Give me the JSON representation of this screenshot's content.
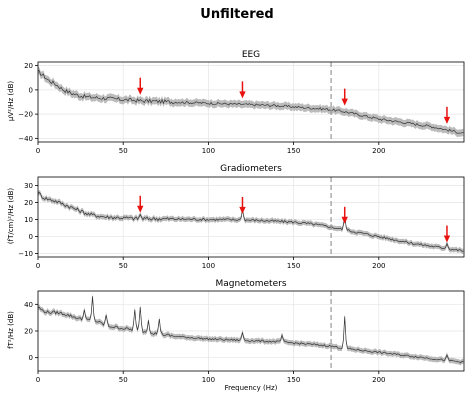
{
  "figure_title": "Unfiltered",
  "xlabel": "Frequency (Hz)",
  "colors": {
    "trace": "#333333",
    "band": "#b0b0b0",
    "arrow": "#e8130f",
    "line_noise_marker": "#999999",
    "grid": "#e5e5e5"
  },
  "chart_data": [
    {
      "type": "line",
      "title": "EEG",
      "ylabel": "µV²/Hz (dB)",
      "xlim": [
        0,
        250
      ],
      "ylim": [
        -43,
        23
      ],
      "xticks": [
        0,
        50,
        100,
        150,
        200
      ],
      "yticks": [
        -40,
        -20,
        0,
        20
      ],
      "grid": true,
      "dashed_vline_x": 172,
      "arrows_x": [
        60,
        120,
        180,
        240
      ],
      "series": [
        {
          "x": [
            0,
            3,
            6,
            10,
            15,
            20,
            25,
            30,
            40,
            50,
            60,
            70,
            80,
            90,
            100,
            110,
            120,
            130,
            140,
            150,
            160,
            170,
            180,
            190,
            200,
            210,
            220,
            230,
            240,
            250
          ],
          "y": [
            15,
            12,
            8,
            5,
            0,
            -3,
            -5,
            -6,
            -7,
            -8,
            -9,
            -9.5,
            -10,
            -10.5,
            -11,
            -11.5,
            -12,
            -12.5,
            -13,
            -14,
            -15,
            -16,
            -18,
            -21,
            -24,
            -26,
            -28,
            -30,
            -33,
            -36
          ],
          "band": 3
        }
      ]
    },
    {
      "type": "line",
      "title": "Gradiometers",
      "ylabel": "(fT/cm)²/Hz (dB)",
      "xlim": [
        0,
        250
      ],
      "ylim": [
        -12,
        35
      ],
      "xticks": [
        0,
        50,
        100,
        150,
        200
      ],
      "yticks": [
        -10,
        0,
        10,
        20,
        30
      ],
      "grid": true,
      "dashed_vline_x": 172,
      "arrows_x": [
        60,
        120,
        180,
        240
      ],
      "series": [
        {
          "x": [
            0,
            3,
            6,
            10,
            15,
            20,
            25,
            30,
            40,
            50,
            60,
            70,
            80,
            90,
            100,
            110,
            120,
            130,
            140,
            150,
            160,
            170,
            180,
            190,
            200,
            210,
            220,
            230,
            240,
            250
          ],
          "y": [
            26,
            23,
            22,
            21,
            19,
            17,
            15,
            13,
            11.5,
            11,
            10.5,
            10.5,
            10.3,
            10.2,
            10,
            10,
            9.8,
            9.5,
            9,
            8.5,
            7.5,
            6,
            4,
            2,
            0,
            -2,
            -4,
            -5.5,
            -7,
            -8.5
          ],
          "band": 1.5
        }
      ],
      "peaks": [
        {
          "x": 60,
          "y": 13
        },
        {
          "x": 120,
          "y": 16
        },
        {
          "x": 180,
          "y": 13
        },
        {
          "x": 240,
          "y": -4
        }
      ]
    },
    {
      "type": "line",
      "title": "Magnetometers",
      "ylabel": "fT²/Hz (dB)",
      "xlim": [
        0,
        250
      ],
      "ylim": [
        -10,
        50
      ],
      "xticks": [
        0,
        50,
        100,
        150,
        200
      ],
      "yticks": [
        0,
        20,
        40
      ],
      "grid": true,
      "dashed_vline_x": 172,
      "arrows_x": [],
      "series": [
        {
          "x": [
            0,
            3,
            6,
            10,
            15,
            20,
            25,
            30,
            35,
            40,
            45,
            50,
            55,
            60,
            65,
            70,
            75,
            80,
            90,
            100,
            110,
            120,
            130,
            140,
            150,
            160,
            170,
            180,
            190,
            200,
            210,
            220,
            230,
            240,
            250
          ],
          "y": [
            38,
            35,
            34,
            34,
            33,
            31,
            29,
            28,
            27,
            24,
            23,
            22,
            21,
            20,
            19,
            18,
            17,
            16,
            15,
            14,
            13.5,
            13,
            12.5,
            12,
            11,
            10,
            9,
            7,
            5.5,
            4,
            2.5,
            1,
            -0.5,
            -2,
            -3.5
          ],
          "band": 2
        }
      ],
      "peaks": [
        {
          "x": 27,
          "y": 36
        },
        {
          "x": 32,
          "y": 46
        },
        {
          "x": 40,
          "y": 32
        },
        {
          "x": 57,
          "y": 36
        },
        {
          "x": 60,
          "y": 38
        },
        {
          "x": 65,
          "y": 28
        },
        {
          "x": 71,
          "y": 29
        },
        {
          "x": 120,
          "y": 19
        },
        {
          "x": 143,
          "y": 17
        },
        {
          "x": 180,
          "y": 31
        },
        {
          "x": 240,
          "y": 2
        }
      ]
    }
  ]
}
